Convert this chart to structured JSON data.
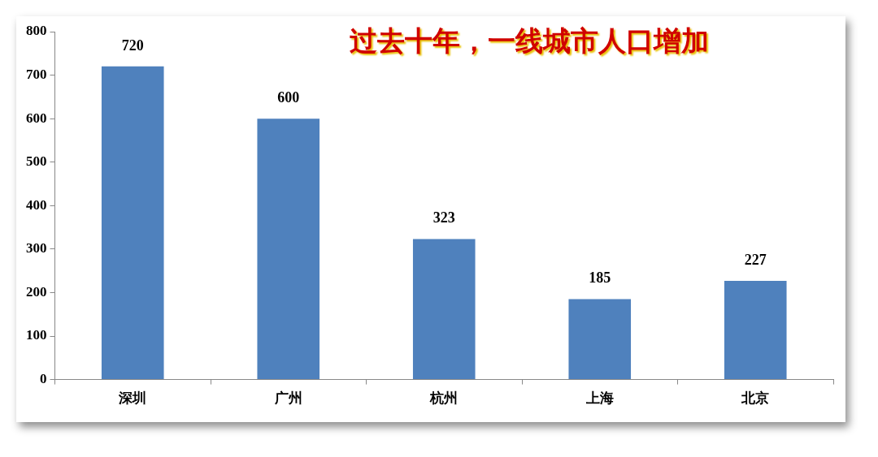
{
  "chart_data": {
    "type": "bar",
    "title": "过去十年，一线城市人口增加",
    "categories": [
      "深圳",
      "广州",
      "杭州",
      "上海",
      "北京"
    ],
    "values": [
      720,
      600,
      323,
      185,
      227
    ],
    "color": "#4f81bd",
    "ylim": [
      0,
      800
    ],
    "yticks": [
      0,
      100,
      200,
      300,
      400,
      500,
      600,
      700,
      800
    ],
    "grid": false,
    "data_labels": true
  }
}
